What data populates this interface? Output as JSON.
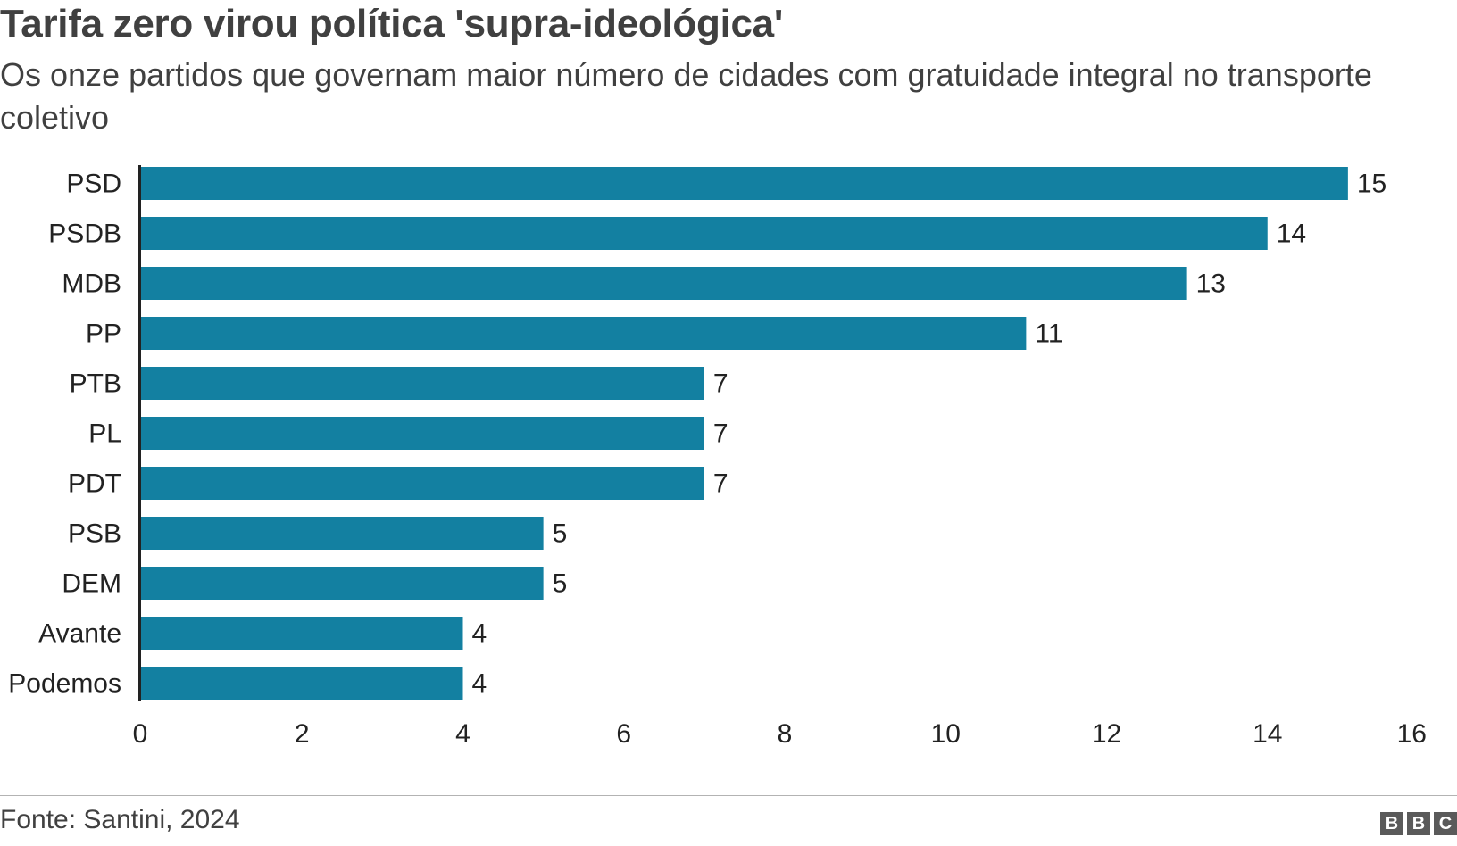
{
  "header": {
    "title": "Tarifa zero virou política 'supra-ideológica'",
    "subtitle": "Os onze partidos que governam maior número de cidades com gratuidade integral no transporte coletivo"
  },
  "footer": {
    "source": "Fonte: Santini, 2024",
    "logo_letters": [
      "B",
      "B",
      "C"
    ]
  },
  "colors": {
    "bar": "#1380A1",
    "text": "#222222",
    "axis": "#222222"
  },
  "chart_data": {
    "type": "bar",
    "orientation": "horizontal",
    "categories": [
      "PSD",
      "PSDB",
      "MDB",
      "PP",
      "PTB",
      "PL",
      "PDT",
      "PSB",
      "DEM",
      "Avante",
      "Podemos"
    ],
    "values": [
      15,
      14,
      13,
      11,
      7,
      7,
      7,
      5,
      5,
      4,
      4
    ],
    "xlim": [
      0,
      16
    ],
    "xticks": [
      0,
      2,
      4,
      6,
      8,
      10,
      12,
      14,
      16
    ],
    "title": "Tarifa zero virou política 'supra-ideológica'",
    "xlabel": "",
    "ylabel": "",
    "grid": false,
    "data_labels": true
  }
}
